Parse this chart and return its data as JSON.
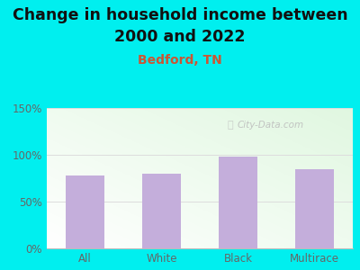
{
  "title_line1": "Change in household income between",
  "title_line2": "2000 and 2022",
  "subtitle": "Bedford, TN",
  "categories": [
    "All",
    "White",
    "Black",
    "Multirace"
  ],
  "values": [
    78,
    80,
    98,
    85
  ],
  "bar_color": "#C4AEDB",
  "background_outer": "#00EFEF",
  "title_fontsize": 12.5,
  "subtitle_fontsize": 10,
  "subtitle_color": "#CC5533",
  "title_color": "#111111",
  "tick_color": "#666666",
  "ylim": [
    0,
    150
  ],
  "yticks": [
    0,
    50,
    100,
    150
  ],
  "ytick_labels": [
    "0%",
    "50%",
    "100%",
    "150%"
  ],
  "watermark": "City-Data.com",
  "watermark_color": "#bbbbbb",
  "grid_color": "#dddddd"
}
